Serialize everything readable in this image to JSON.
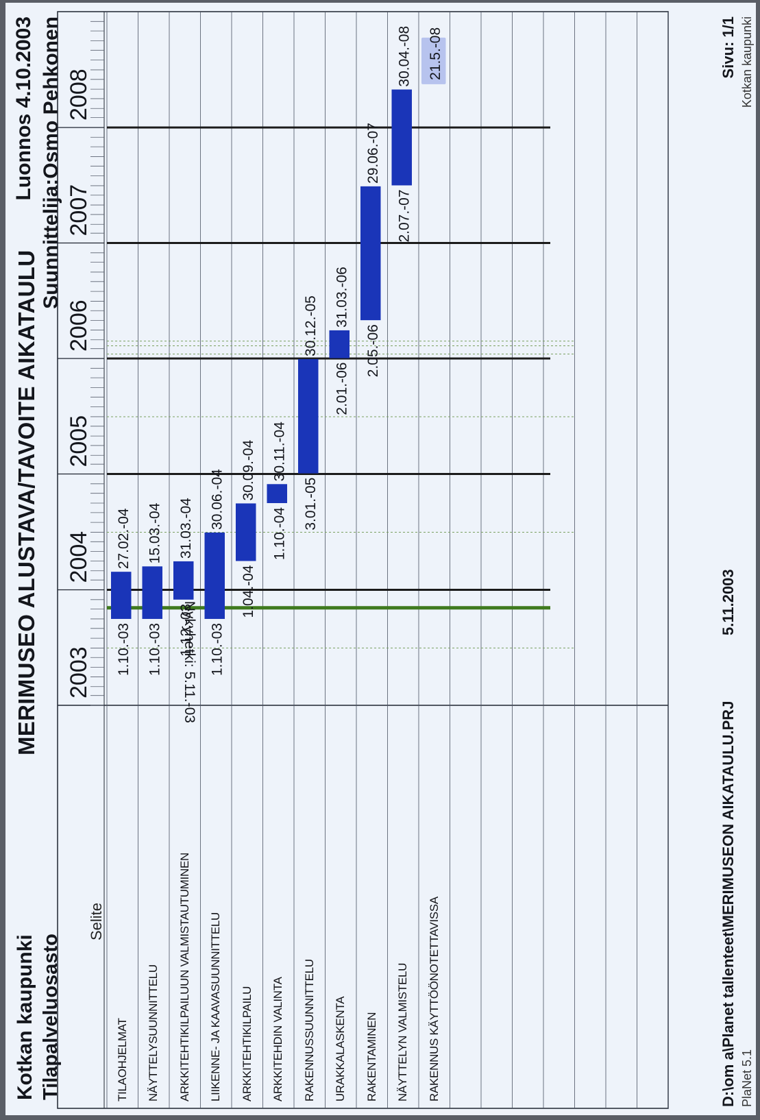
{
  "header": {
    "org": "Kotkan kaupunki",
    "department": "Tilapalveluosasto",
    "title": "MERIMUSEO ALUSTAVA/TAVOITE AIKATAULU",
    "draft": "Luonnos 4.10.2003",
    "planner": "Suunnittelija:Osmo Pehkonen",
    "legend_header": "Selite"
  },
  "footer": {
    "path": "D:\\om a\\Planet tallenteet\\MERIMUSEON AIKATAULU.PRJ",
    "date": "5.11.2003",
    "page": "Sivu: 1/1",
    "app": "PlaNet 5.1",
    "org": "Kotkan kaupunki"
  },
  "colors": {
    "bar": "#1a35b8",
    "today_line": "#3f7a1e",
    "year_line": "#1b1b1b",
    "highlight": "#b7c3ee"
  },
  "chart_data": {
    "type": "gantt",
    "x_axis": {
      "years": [
        "2003",
        "2004",
        "2005",
        "2006",
        "2007",
        "2008"
      ],
      "range": [
        "2003-01-01",
        "2009-01-01"
      ]
    },
    "today": {
      "date": "2003-11-05",
      "label": "Nykyhetki: 5.11.-03"
    },
    "tasks": [
      {
        "name": "TILAOHJELMAT",
        "start": "2003-10-01",
        "end": "2004-02-27",
        "start_label": "1.10.-03",
        "end_label": "27.02.-04"
      },
      {
        "name": "NÄYTTELYSUUNNITTELU",
        "start": "2003-10-01",
        "end": "2004-03-15",
        "start_label": "1.10.-03",
        "end_label": "15.03.-04"
      },
      {
        "name": "ARKKITEHTIKILPAILUUN VALMISTAUTUMINEN",
        "start": "2003-12-01",
        "end": "2004-03-31",
        "start_label": "1.12.-03",
        "end_label": "31.03.-04"
      },
      {
        "name": "LIIKENNE- JA KAAVASUUNNITTELU",
        "start": "2003-10-01",
        "end": "2004-06-30",
        "start_label": "1.10.-03",
        "end_label": "30.06.-04"
      },
      {
        "name": "ARKKITEHTIKILPAILU",
        "start": "2004-04-01",
        "end": "2004-09-30",
        "start_label": "1.04.-04",
        "end_label": "30.09.-04"
      },
      {
        "name": "ARKKITEHDIN VALINTA",
        "start": "2004-10-01",
        "end": "2004-11-30",
        "start_label": "1.10.-04",
        "end_label": "30.11.-04"
      },
      {
        "name": "RAKENNUSSUUNNITTELU",
        "start": "2005-01-03",
        "end": "2005-12-30",
        "start_label": "3.01.-05",
        "end_label": "30.12.-05"
      },
      {
        "name": "URAKKALASKENTA",
        "start": "2006-01-02",
        "end": "2006-03-31",
        "start_label": "2.01.-06",
        "end_label": "31.03.-06"
      },
      {
        "name": "RAKENTAMINEN",
        "start": "2006-05-02",
        "end": "2007-06-29",
        "start_label": "2.05.-06",
        "end_label": "29.06.-07"
      },
      {
        "name": "NÄYTTELYN VALMISTELU",
        "start": "2007-07-02",
        "end": "2008-04-30",
        "start_label": "2.07.-07",
        "end_label": "30.04.-08"
      },
      {
        "name": "RAKENNUS KÄYTTÖÖNOTETTAVISSA",
        "milestone": "2008-05-21",
        "milestone_label": "21.5.-08"
      }
    ]
  }
}
